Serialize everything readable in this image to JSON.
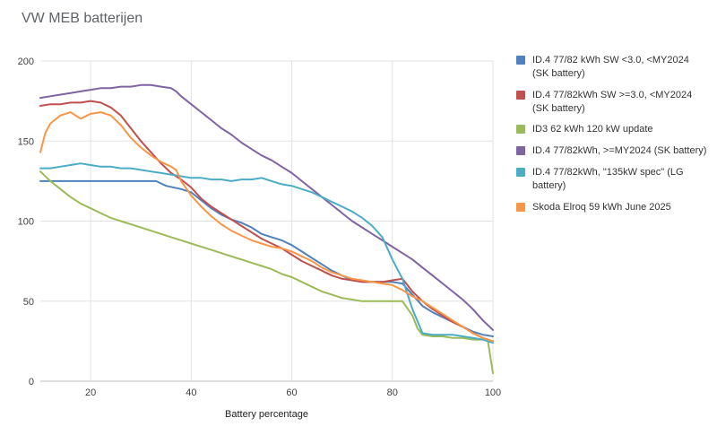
{
  "title": "VW MEB batterijen",
  "chart_data": {
    "type": "line",
    "title": "VW MEB batterijen",
    "xlabel": "Battery percentage",
    "ylabel": "",
    "xlim": [
      10,
      100
    ],
    "ylim": [
      0,
      200
    ],
    "x_ticks": [
      20,
      40,
      60,
      80,
      100
    ],
    "y_ticks": [
      0,
      50,
      100,
      150,
      200
    ],
    "grid": true,
    "legend_position": "right",
    "colors": {
      "grid": "#e3e3e3",
      "axis": "#bdbdbd",
      "tick_text": "#424242"
    },
    "series": [
      {
        "name": "ID.4 77/82 kWh SW <3.0, <MY2024 (SK battery)",
        "color": "#4F81BD",
        "points": [
          [
            10,
            125
          ],
          [
            15,
            125
          ],
          [
            20,
            125
          ],
          [
            25,
            125
          ],
          [
            30,
            125
          ],
          [
            33,
            125
          ],
          [
            35,
            122
          ],
          [
            38,
            120
          ],
          [
            40,
            118
          ],
          [
            42,
            113
          ],
          [
            44,
            108
          ],
          [
            46,
            104
          ],
          [
            48,
            101
          ],
          [
            50,
            99
          ],
          [
            52,
            96
          ],
          [
            54,
            92
          ],
          [
            56,
            90
          ],
          [
            58,
            88
          ],
          [
            60,
            85
          ],
          [
            62,
            81
          ],
          [
            64,
            77
          ],
          [
            66,
            73
          ],
          [
            68,
            69
          ],
          [
            70,
            66
          ],
          [
            72,
            63
          ],
          [
            74,
            62
          ],
          [
            76,
            62
          ],
          [
            78,
            62
          ],
          [
            80,
            62
          ],
          [
            82,
            61
          ],
          [
            84,
            54
          ],
          [
            86,
            47
          ],
          [
            88,
            43
          ],
          [
            90,
            40
          ],
          [
            92,
            37
          ],
          [
            94,
            34
          ],
          [
            96,
            31
          ],
          [
            98,
            29
          ],
          [
            100,
            28
          ]
        ]
      },
      {
        "name": "ID.4 77/82kWh SW >=3.0, <MY2024 (SK battery)",
        "color": "#C0504D",
        "points": [
          [
            10,
            172
          ],
          [
            12,
            173
          ],
          [
            14,
            173
          ],
          [
            16,
            174
          ],
          [
            18,
            174
          ],
          [
            20,
            175
          ],
          [
            22,
            174
          ],
          [
            24,
            171
          ],
          [
            26,
            166
          ],
          [
            28,
            158
          ],
          [
            30,
            150
          ],
          [
            32,
            143
          ],
          [
            34,
            136
          ],
          [
            36,
            130
          ],
          [
            38,
            126
          ],
          [
            40,
            121
          ],
          [
            42,
            114
          ],
          [
            44,
            109
          ],
          [
            46,
            105
          ],
          [
            48,
            101
          ],
          [
            50,
            97
          ],
          [
            52,
            93
          ],
          [
            54,
            89
          ],
          [
            56,
            86
          ],
          [
            58,
            83
          ],
          [
            60,
            79
          ],
          [
            62,
            75
          ],
          [
            64,
            72
          ],
          [
            66,
            69
          ],
          [
            68,
            66
          ],
          [
            70,
            64
          ],
          [
            72,
            63
          ],
          [
            74,
            62
          ],
          [
            76,
            62
          ],
          [
            78,
            62
          ],
          [
            80,
            63
          ],
          [
            82,
            64
          ],
          [
            84,
            56
          ],
          [
            86,
            50
          ],
          [
            88,
            45
          ],
          [
            90,
            41
          ],
          [
            92,
            37
          ],
          [
            94,
            34
          ],
          [
            96,
            30
          ],
          [
            98,
            27
          ],
          [
            100,
            25
          ]
        ]
      },
      {
        "name": "ID3 62 kWh 120 kW update",
        "color": "#9BBB59",
        "points": [
          [
            10,
            131
          ],
          [
            12,
            125
          ],
          [
            14,
            120
          ],
          [
            16,
            115
          ],
          [
            18,
            111
          ],
          [
            20,
            108
          ],
          [
            22,
            105
          ],
          [
            24,
            102
          ],
          [
            26,
            100
          ],
          [
            28,
            98
          ],
          [
            30,
            96
          ],
          [
            32,
            94
          ],
          [
            34,
            92
          ],
          [
            36,
            90
          ],
          [
            38,
            88
          ],
          [
            40,
            86
          ],
          [
            42,
            84
          ],
          [
            44,
            82
          ],
          [
            46,
            80
          ],
          [
            48,
            78
          ],
          [
            50,
            76
          ],
          [
            52,
            74
          ],
          [
            54,
            72
          ],
          [
            56,
            70
          ],
          [
            58,
            67
          ],
          [
            60,
            65
          ],
          [
            62,
            62
          ],
          [
            64,
            59
          ],
          [
            66,
            56
          ],
          [
            68,
            54
          ],
          [
            70,
            52
          ],
          [
            72,
            51
          ],
          [
            74,
            50
          ],
          [
            76,
            50
          ],
          [
            78,
            50
          ],
          [
            80,
            50
          ],
          [
            82,
            50
          ],
          [
            84,
            41
          ],
          [
            85,
            33
          ],
          [
            86,
            29
          ],
          [
            88,
            28
          ],
          [
            90,
            28
          ],
          [
            92,
            27
          ],
          [
            94,
            27
          ],
          [
            96,
            26
          ],
          [
            98,
            26
          ],
          [
            99,
            25
          ],
          [
            100,
            5
          ]
        ]
      },
      {
        "name": "ID.4 77/82kWh, >=MY2024 (SK battery)",
        "color": "#8064A2",
        "points": [
          [
            10,
            177
          ],
          [
            12,
            178
          ],
          [
            14,
            179
          ],
          [
            16,
            180
          ],
          [
            18,
            181
          ],
          [
            20,
            182
          ],
          [
            22,
            183
          ],
          [
            24,
            183
          ],
          [
            26,
            184
          ],
          [
            28,
            184
          ],
          [
            30,
            185
          ],
          [
            32,
            185
          ],
          [
            34,
            184
          ],
          [
            36,
            183
          ],
          [
            37,
            181
          ],
          [
            38,
            178
          ],
          [
            40,
            173
          ],
          [
            42,
            168
          ],
          [
            44,
            163
          ],
          [
            46,
            158
          ],
          [
            48,
            154
          ],
          [
            50,
            149
          ],
          [
            52,
            145
          ],
          [
            54,
            141
          ],
          [
            56,
            138
          ],
          [
            58,
            134
          ],
          [
            60,
            130
          ],
          [
            62,
            125
          ],
          [
            64,
            120
          ],
          [
            66,
            115
          ],
          [
            68,
            110
          ],
          [
            70,
            105
          ],
          [
            72,
            100
          ],
          [
            74,
            96
          ],
          [
            76,
            92
          ],
          [
            78,
            88
          ],
          [
            80,
            84
          ],
          [
            82,
            80
          ],
          [
            84,
            76
          ],
          [
            86,
            71
          ],
          [
            88,
            66
          ],
          [
            90,
            61
          ],
          [
            92,
            56
          ],
          [
            94,
            51
          ],
          [
            96,
            45
          ],
          [
            98,
            38
          ],
          [
            100,
            32
          ]
        ]
      },
      {
        "name": "ID.4 77/82kWh, \"135kW spec\" (LG battery)",
        "color": "#4BACC6",
        "points": [
          [
            10,
            133
          ],
          [
            12,
            133
          ],
          [
            14,
            134
          ],
          [
            16,
            135
          ],
          [
            18,
            136
          ],
          [
            20,
            135
          ],
          [
            22,
            134
          ],
          [
            24,
            134
          ],
          [
            26,
            133
          ],
          [
            28,
            133
          ],
          [
            30,
            132
          ],
          [
            32,
            131
          ],
          [
            34,
            130
          ],
          [
            36,
            129
          ],
          [
            38,
            128
          ],
          [
            40,
            127
          ],
          [
            42,
            127
          ],
          [
            44,
            126
          ],
          [
            46,
            126
          ],
          [
            48,
            125
          ],
          [
            50,
            126
          ],
          [
            52,
            126
          ],
          [
            54,
            127
          ],
          [
            56,
            125
          ],
          [
            58,
            123
          ],
          [
            60,
            122
          ],
          [
            62,
            120
          ],
          [
            64,
            118
          ],
          [
            66,
            115
          ],
          [
            68,
            112
          ],
          [
            70,
            109
          ],
          [
            72,
            106
          ],
          [
            74,
            102
          ],
          [
            76,
            97
          ],
          [
            78,
            90
          ],
          [
            80,
            76
          ],
          [
            82,
            64
          ],
          [
            84,
            45
          ],
          [
            86,
            30
          ],
          [
            88,
            29
          ],
          [
            90,
            29
          ],
          [
            92,
            29
          ],
          [
            94,
            28
          ],
          [
            96,
            27
          ],
          [
            98,
            26
          ],
          [
            100,
            24
          ]
        ]
      },
      {
        "name": "Skoda Elroq 59 kWh June 2025",
        "color": "#F79646",
        "points": [
          [
            10,
            143
          ],
          [
            11,
            155
          ],
          [
            12,
            161
          ],
          [
            14,
            166
          ],
          [
            16,
            168
          ],
          [
            18,
            164
          ],
          [
            20,
            167
          ],
          [
            22,
            168
          ],
          [
            24,
            166
          ],
          [
            26,
            160
          ],
          [
            28,
            152
          ],
          [
            30,
            146
          ],
          [
            32,
            141
          ],
          [
            34,
            137
          ],
          [
            36,
            134
          ],
          [
            37,
            132
          ],
          [
            38,
            125
          ],
          [
            40,
            116
          ],
          [
            42,
            109
          ],
          [
            44,
            103
          ],
          [
            46,
            98
          ],
          [
            48,
            94
          ],
          [
            50,
            91
          ],
          [
            52,
            88
          ],
          [
            54,
            86
          ],
          [
            56,
            84
          ],
          [
            58,
            83
          ],
          [
            60,
            81
          ],
          [
            62,
            78
          ],
          [
            64,
            75
          ],
          [
            66,
            71
          ],
          [
            68,
            68
          ],
          [
            70,
            66
          ],
          [
            72,
            64
          ],
          [
            74,
            63
          ],
          [
            76,
            62
          ],
          [
            78,
            61
          ],
          [
            80,
            60
          ],
          [
            82,
            57
          ],
          [
            84,
            53
          ],
          [
            86,
            50
          ],
          [
            88,
            46
          ],
          [
            90,
            42
          ],
          [
            92,
            38
          ],
          [
            94,
            34
          ],
          [
            96,
            30
          ],
          [
            98,
            27
          ],
          [
            100,
            25
          ]
        ]
      }
    ]
  }
}
